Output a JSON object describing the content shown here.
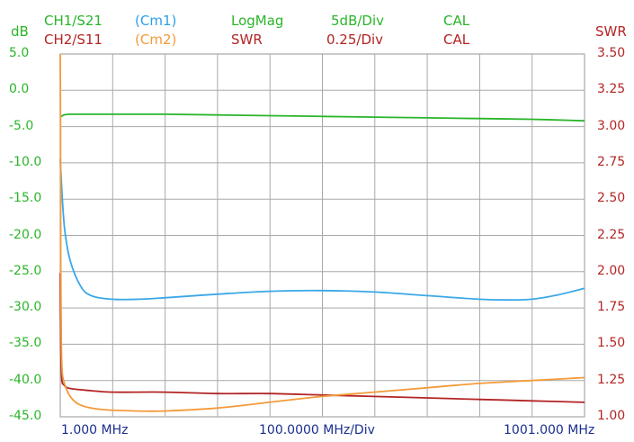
{
  "header": {
    "ch1": {
      "label": "CH1/S21",
      "marker": "(Cm1)",
      "format": "LogMag",
      "scale": "5dB/Div",
      "cal": "CAL"
    },
    "ch2": {
      "label": "CH2/S11",
      "marker": "(Cm2)",
      "format": "SWR",
      "scale": "0.25/Div",
      "cal": "CAL"
    },
    "left_unit": "dB",
    "right_unit": "SWR"
  },
  "colors": {
    "ch1_s21": "#2ab52a",
    "cm1": "#3aa8e8",
    "ch2_s11": "#b32424",
    "cm2": "#f39a3a",
    "grid": "#a8a8a8",
    "xaxis_text": "#1b2f8f"
  },
  "chart_data": {
    "type": "line",
    "grid": true,
    "ylim_left": [
      -45,
      5
    ],
    "ylim_right": [
      1.0,
      3.5
    ],
    "left_ticks": [
      "5.0",
      "0.0",
      "-5.0",
      "-10.0",
      "-15.0",
      "-20.0",
      "-25.0",
      "-30.0",
      "-35.0",
      "-40.0",
      "-45.0"
    ],
    "right_ticks": [
      "3.50",
      "3.25",
      "3.00",
      "2.75",
      "2.50",
      "2.25",
      "2.00",
      "1.75",
      "1.50",
      "1.25",
      "1.00"
    ],
    "x_tick_labels": [
      "1.000 MHz",
      "100.0000 MHz/Div",
      "1001.000 MHz"
    ],
    "xlim": [
      1,
      1001
    ],
    "series": [
      {
        "name": "CH1/S21",
        "axis": "left",
        "color": "#2ab52a",
        "x": [
          1,
          8,
          20,
          50,
          100,
          200,
          300,
          400,
          500,
          600,
          700,
          800,
          900,
          1001
        ],
        "y": [
          -3.7,
          -3.4,
          -3.3,
          -3.3,
          -3.3,
          -3.3,
          -3.4,
          -3.5,
          -3.6,
          -3.7,
          -3.8,
          -3.9,
          -4.0,
          -4.2
        ]
      },
      {
        "name": "Cm1",
        "axis": "left",
        "color": "#3aa8e8",
        "x": [
          1,
          5,
          10,
          20,
          40,
          60,
          100,
          150,
          200,
          300,
          400,
          500,
          600,
          700,
          800,
          850,
          900,
          950,
          1001
        ],
        "y": [
          -9.5,
          -15,
          -19.5,
          -23.5,
          -27,
          -28.3,
          -28.8,
          -28.8,
          -28.6,
          -28.1,
          -27.7,
          -27.6,
          -27.8,
          -28.3,
          -28.8,
          -28.9,
          -28.8,
          -28.2,
          -27.3
        ]
      },
      {
        "name": "CH2/S11",
        "axis": "right",
        "color": "#b32424",
        "x": [
          1,
          2,
          4,
          8,
          15,
          30,
          60,
          100,
          200,
          300,
          400,
          500,
          600,
          700,
          800,
          900,
          1001
        ],
        "y": [
          1.99,
          1.5,
          1.26,
          1.22,
          1.2,
          1.19,
          1.18,
          1.17,
          1.17,
          1.16,
          1.16,
          1.15,
          1.14,
          1.13,
          1.12,
          1.11,
          1.1
        ]
      },
      {
        "name": "Cm2",
        "axis": "right",
        "color": "#f39a3a",
        "x": [
          1,
          1.5,
          2,
          3,
          5,
          10,
          20,
          40,
          80,
          150,
          200,
          300,
          400,
          500,
          600,
          700,
          800,
          900,
          1001
        ],
        "y": [
          3.5,
          3.0,
          2.0,
          1.5,
          1.3,
          1.22,
          1.14,
          1.08,
          1.05,
          1.04,
          1.04,
          1.06,
          1.1,
          1.14,
          1.17,
          1.2,
          1.23,
          1.25,
          1.27
        ]
      }
    ]
  }
}
